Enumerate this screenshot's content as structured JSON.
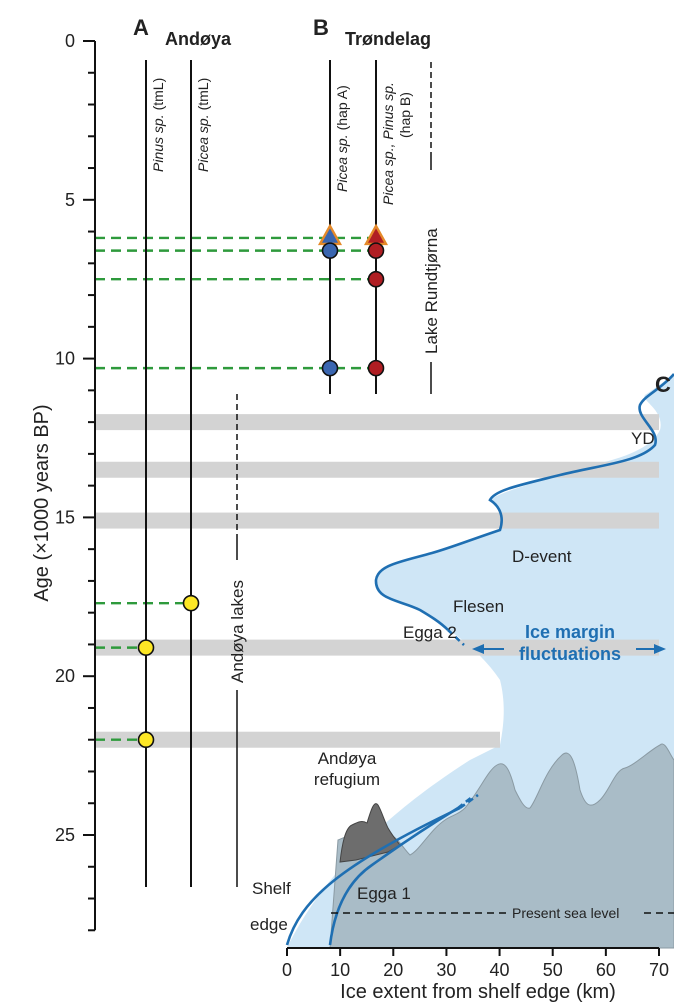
{
  "colors": {
    "ice_fill": "#cfe6f6",
    "ice_line": "#1f6fb2",
    "terrain": "#a9bcc7",
    "refugium": "#6d6d6d",
    "bands": "#d3d3d3",
    "green": "#2e9a3c",
    "yellow": "#fde725",
    "blue": "#3a66b0",
    "red": "#b01e23",
    "triangle": "#e58a2a"
  },
  "icons": {
    "marker_circle": "circle",
    "marker_triangle": "triangle"
  },
  "panels": {
    "a": "A",
    "b": "B",
    "c": "C"
  },
  "regions": {
    "andoya": "Andøya",
    "trondelag": "Trøndelag"
  },
  "taxa": {
    "pinus_a": {
      "genus": "Pinus sp.",
      "tag": "(tmL)"
    },
    "picea_a": {
      "genus": "Picea sp.",
      "tag": "(tmL)"
    },
    "picea_b": {
      "genus": "Picea sp.",
      "tag": "(hap A)"
    },
    "picea_pinus_b": {
      "genus": "Picea sp., Pinus sp.",
      "tag": "(hap B)"
    }
  },
  "lakes": {
    "rundtjorna": "Lake Rundtjørna",
    "andoya_lakes": "Andøya lakes"
  },
  "axes": {
    "y_title": "Age (×1000 years  BP)",
    "x_title": "Ice extent from shelf edge (km)",
    "y_ticks": [
      "0",
      "5",
      "10",
      "15",
      "20",
      "25"
    ],
    "x_ticks": [
      "0",
      "10",
      "20",
      "30",
      "40",
      "50",
      "60",
      "70"
    ]
  },
  "chart_data": {
    "type": "other",
    "y_range_kyr": [
      0,
      28
    ],
    "x_range_km": [
      0,
      70
    ],
    "grey_bands_kyr": [
      12.0,
      13.5,
      15.1,
      19.1,
      22.0
    ],
    "green_dashed_lines_kyr": [
      6.2,
      6.6,
      7.5,
      10.3,
      17.7,
      19.1,
      22.0
    ],
    "andoya_markers": [
      {
        "column": "Pinus sp. (tmL)",
        "age_kyr": 19.1,
        "color": "yellow"
      },
      {
        "column": "Pinus sp. (tmL)",
        "age_kyr": 22.0,
        "color": "yellow"
      },
      {
        "column": "Picea sp. (tmL)",
        "age_kyr": 17.7,
        "color": "yellow"
      }
    ],
    "trondelag_markers": [
      {
        "column": "Picea sp. (hap A)",
        "age_kyr": 6.2,
        "shape": "triangle"
      },
      {
        "column": "Picea sp. (hap A)",
        "age_kyr": 6.6,
        "color": "blue"
      },
      {
        "column": "Picea sp. (hap A)",
        "age_kyr": 10.3,
        "color": "blue"
      },
      {
        "column": "Picea sp., Pinus sp. (hap B)",
        "age_kyr": 6.2,
        "shape": "triangle"
      },
      {
        "column": "Picea sp., Pinus sp. (hap B)",
        "age_kyr": 6.6,
        "color": "red"
      },
      {
        "column": "Picea sp., Pinus sp. (hap B)",
        "age_kyr": 7.5,
        "color": "red"
      },
      {
        "column": "Picea sp., Pinus sp. (hap B)",
        "age_kyr": 10.3,
        "color": "red"
      }
    ],
    "ice_margin_curve": [
      {
        "age_kyr": 11.4,
        "km": 71
      },
      {
        "age_kyr": 12.4,
        "km": 66
      },
      {
        "age_kyr": 13.4,
        "km": 64
      },
      {
        "age_kyr": 14.8,
        "km": 60
      },
      {
        "age_kyr": 15.8,
        "km": 44
      },
      {
        "age_kyr": 16.6,
        "km": 40
      },
      {
        "age_kyr": 17.4,
        "km": 28
      },
      {
        "age_kyr": 18.4,
        "km": 18
      },
      {
        "age_kyr": 19.7,
        "km": 28
      },
      {
        "age_kyr": 21.0,
        "km": 38
      },
      {
        "age_kyr": 22.8,
        "km": 37
      }
    ],
    "annotations": {
      "yd": "YD",
      "d_event": "D-event",
      "flesen": "Flesen",
      "egga2": "Egga 2",
      "ice_margin_1": "Ice margin",
      "ice_margin_2": "fluctuations",
      "refugium_1": "Andøya",
      "refugium_2": "refugium",
      "shelf_1": "Shelf",
      "shelf_2": "edge",
      "egga1": "Egga 1",
      "sea_level": "Present sea level"
    }
  }
}
